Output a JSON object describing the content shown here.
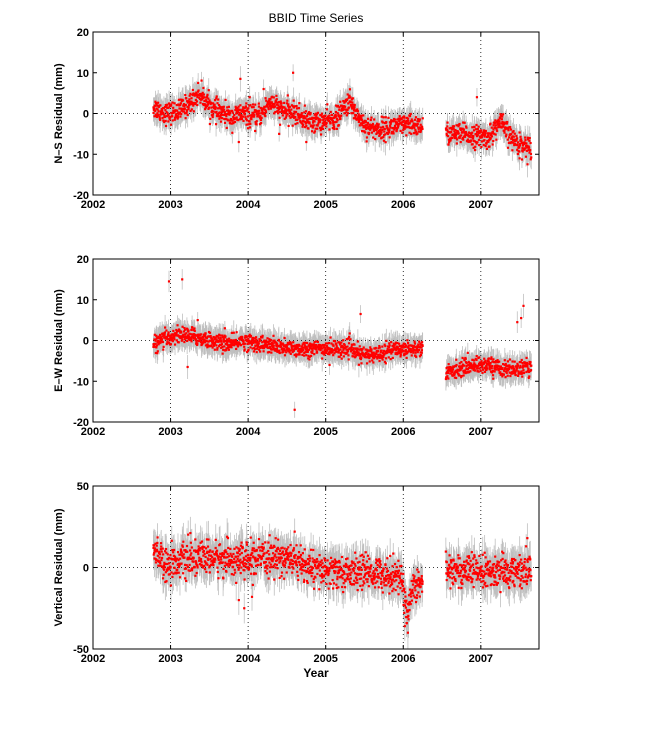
{
  "chart_data": {
    "type": "scatter",
    "title": "BBID Time Series",
    "xlabel": "Year",
    "xlim": [
      2002,
      2007.75
    ],
    "xticks": [
      2002,
      2003,
      2004,
      2005,
      2006,
      2007
    ],
    "grid": "dotted vertical at year ticks and horizontal at zero",
    "marker_color": "#ff0000",
    "errorbar_color": "#bfbfbf",
    "panels": [
      {
        "ylabel": "N–S Residual (mm)",
        "ylim": [
          -20,
          20
        ],
        "yticks": [
          -20,
          -10,
          0,
          10,
          20
        ],
        "trend": [
          [
            2002.78,
            1.5
          ],
          [
            2002.95,
            0
          ],
          [
            2003.1,
            0.5
          ],
          [
            2003.25,
            2.5
          ],
          [
            2003.37,
            5
          ],
          [
            2003.55,
            1
          ],
          [
            2003.8,
            -1
          ],
          [
            2003.9,
            0
          ],
          [
            2004.1,
            -1
          ],
          [
            2004.2,
            0.5
          ],
          [
            2004.28,
            3
          ],
          [
            2004.4,
            1
          ],
          [
            2004.6,
            0
          ],
          [
            2004.8,
            -2
          ],
          [
            2005.0,
            -2
          ],
          [
            2005.15,
            -1
          ],
          [
            2005.3,
            3
          ],
          [
            2005.4,
            0
          ],
          [
            2005.5,
            -3
          ],
          [
            2005.7,
            -4
          ],
          [
            2005.9,
            -3
          ],
          [
            2006.1,
            -3
          ],
          [
            2006.25,
            -3
          ]
        ],
        "trend_2": [
          [
            2006.55,
            -5
          ],
          [
            2006.7,
            -5
          ],
          [
            2006.9,
            -5.5
          ],
          [
            2007.1,
            -6
          ],
          [
            2007.25,
            -2
          ],
          [
            2007.35,
            -5
          ],
          [
            2007.45,
            -7
          ],
          [
            2007.65,
            -8.5
          ]
        ],
        "noise": 1.3,
        "errbar": 2.5,
        "outliers": [
          [
            2003.65,
            -2
          ],
          [
            2003.88,
            -7
          ],
          [
            2003.9,
            8.5
          ],
          [
            2004.02,
            4
          ],
          [
            2004.2,
            6
          ],
          [
            2004.4,
            -5
          ],
          [
            2004.58,
            10
          ],
          [
            2004.75,
            -7
          ],
          [
            2006.95,
            4
          ],
          [
            2007.5,
            -11
          ]
        ]
      },
      {
        "ylabel": "E–W Residual (mm)",
        "ylim": [
          -20,
          20
        ],
        "yticks": [
          -20,
          -10,
          0,
          10,
          20
        ],
        "trend": [
          [
            2002.78,
            -1
          ],
          [
            2002.95,
            0.5
          ],
          [
            2003.1,
            1.5
          ],
          [
            2003.3,
            1
          ],
          [
            2003.5,
            0
          ],
          [
            2003.8,
            -1
          ],
          [
            2003.9,
            0
          ],
          [
            2004.2,
            -1
          ],
          [
            2004.5,
            -2
          ],
          [
            2004.8,
            -2
          ],
          [
            2005.0,
            -2
          ],
          [
            2005.3,
            -2
          ],
          [
            2005.45,
            -3.5
          ],
          [
            2005.6,
            -3.5
          ],
          [
            2005.8,
            -2.5
          ],
          [
            2006.0,
            -2
          ],
          [
            2006.25,
            -2
          ]
        ],
        "trend_2": [
          [
            2006.55,
            -8
          ],
          [
            2006.7,
            -7
          ],
          [
            2006.9,
            -6
          ],
          [
            2007.1,
            -6
          ],
          [
            2007.3,
            -7
          ],
          [
            2007.5,
            -7
          ],
          [
            2007.65,
            -6.5
          ]
        ],
        "noise": 1.0,
        "errbar": 2.5,
        "outliers": [
          [
            2002.98,
            14.5
          ],
          [
            2003.15,
            15
          ],
          [
            2003.22,
            -6.5
          ],
          [
            2003.35,
            5
          ],
          [
            2003.7,
            3
          ],
          [
            2004.6,
            -17
          ],
          [
            2005.45,
            6.5
          ],
          [
            2005.05,
            -6
          ],
          [
            2007.47,
            4.5
          ],
          [
            2007.52,
            5.5
          ],
          [
            2007.55,
            8.5
          ]
        ]
      },
      {
        "ylabel": "Vertical Residual (mm)",
        "ylim": [
          -50,
          50
        ],
        "yticks": [
          -50,
          0,
          50
        ],
        "trend": [
          [
            2002.78,
            12
          ],
          [
            2002.95,
            2
          ],
          [
            2003.2,
            5
          ],
          [
            2003.5,
            6
          ],
          [
            2003.8,
            5
          ],
          [
            2004.0,
            4
          ],
          [
            2004.3,
            6
          ],
          [
            2004.5,
            6
          ],
          [
            2004.7,
            2
          ],
          [
            2004.9,
            -2
          ],
          [
            2005.2,
            -3
          ],
          [
            2005.5,
            -3
          ],
          [
            2005.8,
            -4
          ],
          [
            2005.98,
            -6
          ],
          [
            2006.05,
            -30
          ],
          [
            2006.12,
            -12
          ],
          [
            2006.25,
            -8
          ]
        ],
        "trend_2": [
          [
            2006.55,
            -1
          ],
          [
            2006.8,
            -2
          ],
          [
            2007.0,
            -3
          ],
          [
            2007.3,
            -3
          ],
          [
            2007.65,
            -2
          ]
        ],
        "noise": 5.0,
        "errbar": 9,
        "outliers": [
          [
            2003.88,
            -20
          ],
          [
            2003.95,
            -25
          ],
          [
            2004.05,
            -18
          ],
          [
            2004.6,
            22
          ],
          [
            2006.02,
            -36
          ],
          [
            2006.06,
            -40
          ],
          [
            2007.6,
            18
          ]
        ]
      }
    ]
  }
}
